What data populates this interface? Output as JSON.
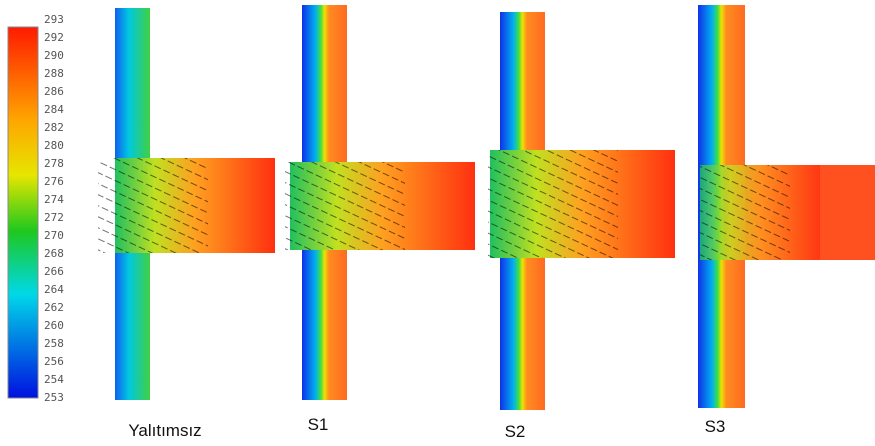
{
  "colorbar": {
    "ticks": [
      293,
      292,
      290,
      288,
      286,
      284,
      282,
      280,
      278,
      276,
      274,
      272,
      270,
      268,
      266,
      264,
      262,
      260,
      258,
      256,
      254,
      253
    ]
  },
  "panels": [
    {
      "label": "Yalıtımsız"
    },
    {
      "label": "S1"
    },
    {
      "label": "S2"
    },
    {
      "label": "S3"
    }
  ]
}
